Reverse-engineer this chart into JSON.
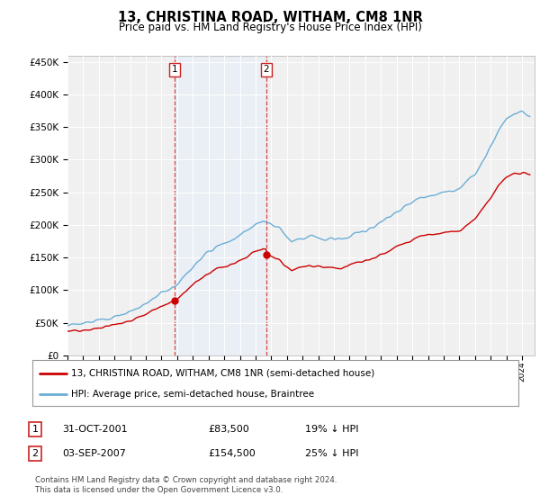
{
  "title": "13, CHRISTINA ROAD, WITHAM, CM8 1NR",
  "subtitle": "Price paid vs. HM Land Registry's House Price Index (HPI)",
  "ylabel_ticks": [
    "£0",
    "£50K",
    "£100K",
    "£150K",
    "£200K",
    "£250K",
    "£300K",
    "£350K",
    "£400K",
    "£450K"
  ],
  "ytick_values": [
    0,
    50000,
    100000,
    150000,
    200000,
    250000,
    300000,
    350000,
    400000,
    450000
  ],
  "ylim": [
    0,
    460000
  ],
  "xlim_start": 1995.0,
  "xlim_end": 2024.8,
  "hpi_color": "#6baed6",
  "price_color": "#cc0000",
  "shade_color": "#ddeeff",
  "vline_color": "#dd2222",
  "marker1_date": 2001.83,
  "marker1_price": 83500,
  "marker2_date": 2007.67,
  "marker2_price": 154500,
  "legend_entry1": "13, CHRISTINA ROAD, WITHAM, CM8 1NR (semi-detached house)",
  "legend_entry2": "HPI: Average price, semi-detached house, Braintree",
  "table_row1": [
    "1",
    "31-OCT-2001",
    "£83,500",
    "19% ↓ HPI"
  ],
  "table_row2": [
    "2",
    "03-SEP-2007",
    "£154,500",
    "25% ↓ HPI"
  ],
  "footnote": "Contains HM Land Registry data © Crown copyright and database right 2024.\nThis data is licensed under the Open Government Licence v3.0.",
  "background_color": "#ffffff",
  "plot_bg_color": "#f0f0f0"
}
